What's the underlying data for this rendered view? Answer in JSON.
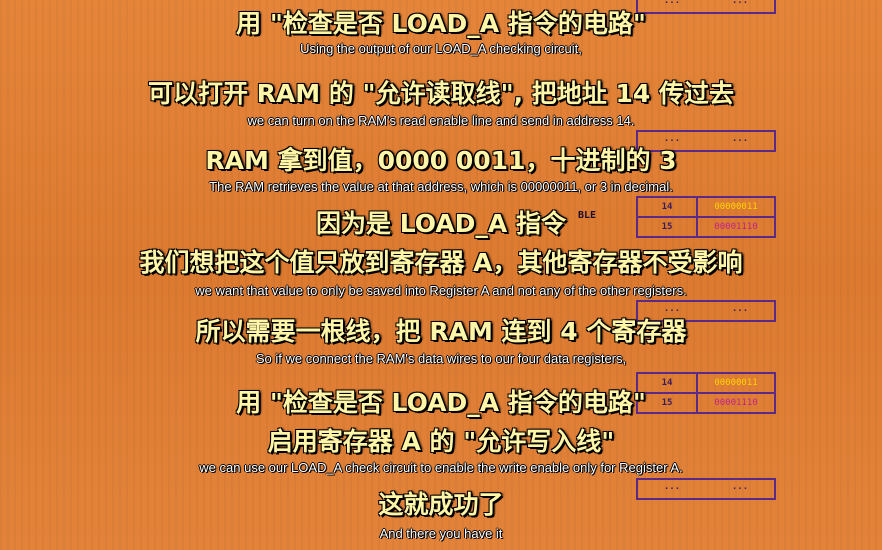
{
  "ram_background": {
    "enable_fragment": "BLE",
    "dots": "...",
    "rows_a": [
      {
        "address": "14",
        "value": "00000011",
        "value_color": "#ffd400"
      },
      {
        "address": "15",
        "value": "00001110",
        "value_color": "#c02090"
      }
    ],
    "rows_b": [
      {
        "address": "14",
        "value": "00000011",
        "value_color": "#ffd400"
      },
      {
        "address": "15",
        "value": "00001110",
        "value_color": "#c02090"
      }
    ]
  },
  "subtitles": [
    {
      "zh": "用 \"检查是否 LOAD_A 指令的电路\""
    },
    {
      "en": "Using the output of our LOAD_A checking circuit,"
    },
    {
      "zh": "可以打开 RAM 的 \"允许读取线\", 把地址 14 传过去"
    },
    {
      "en": "we can turn on the RAM's read enable line and send in address 14."
    },
    {
      "zh": "RAM 拿到值，0000 0011，十进制的 3"
    },
    {
      "en": "The RAM retrieves the value at that address, which is 00000011, or 3 in decimal."
    },
    {
      "zh": "因为是 LOAD_A 指令"
    },
    {
      "zh": "我们想把这个值只放到寄存器 A，其他寄存器不受影响"
    },
    {
      "en": "we want that value to only be saved into Register A and not any of the other registers."
    },
    {
      "zh": "所以需要一根线，把 RAM 连到 4 个寄存器"
    },
    {
      "en": "So if we connect the RAM's data wires to our four data registers,"
    },
    {
      "zh": "用 \"检查是否 LOAD_A 指令的电路\""
    },
    {
      "zh": "启用寄存器 A 的 \"允许写入线\""
    },
    {
      "en": "we can use our LOAD_A check circuit to enable the write enable only for Register A."
    },
    {
      "zh": "这就成功了"
    },
    {
      "en": "And there you have it"
    }
  ]
}
